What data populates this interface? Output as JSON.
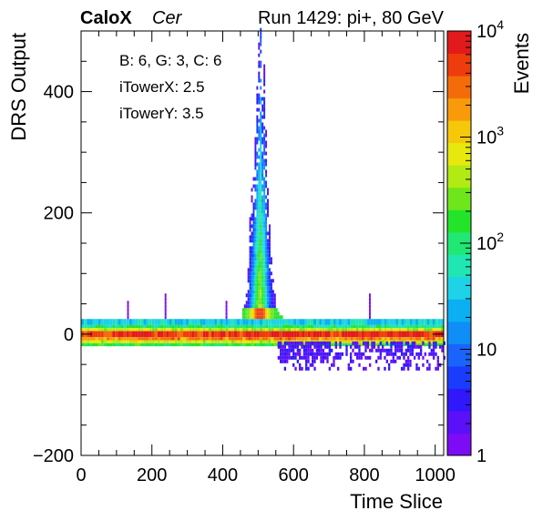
{
  "header": {
    "experiment": "CaloX",
    "channel": "Cer",
    "run_label": "Run 1429: pi+, 80 GeV"
  },
  "info_lines": [
    "B: 6, G: 3, C: 6",
    "iTowerX: 2.5",
    "iTowerY: 3.5"
  ],
  "chart_data": {
    "type": "heatmap",
    "xlabel": "Time Slice",
    "ylabel": "DRS Output",
    "xlim": [
      0,
      1024
    ],
    "ylim": [
      -200,
      500
    ],
    "xticks": [
      0,
      200,
      400,
      600,
      800,
      1000
    ],
    "yticks": [
      -200,
      0,
      200,
      400
    ],
    "z_label": "Events",
    "z_scale": "log",
    "zlim": [
      1,
      10000
    ],
    "z_ticks": [
      {
        "value": 1,
        "label": "1"
      },
      {
        "value": 10,
        "label": "10"
      },
      {
        "value": 100,
        "label": "10",
        "exp": "2"
      },
      {
        "value": 1000,
        "label": "10",
        "exp": "3"
      },
      {
        "value": 10000,
        "label": "10",
        "exp": "4"
      }
    ],
    "palette": [
      "#7b0cf5",
      "#5a10f8",
      "#3018fb",
      "#1a3cfd",
      "#1a64fb",
      "#0e8ef6",
      "#0ab0f2",
      "#1ed2e8",
      "#20e6b4",
      "#1fe874",
      "#24e42a",
      "#6ee61a",
      "#b2ea14",
      "#e6e80e",
      "#f6c80a",
      "#f89a0a",
      "#f46c0a",
      "#ee3c0c",
      "#e31a1c"
    ],
    "baseline_bands": [
      {
        "y": [
          15,
          25
        ],
        "level": 0.38
      },
      {
        "y": [
          10,
          15
        ],
        "level": 0.5
      },
      {
        "y": [
          5,
          10
        ],
        "level": 0.66
      },
      {
        "y": [
          -5,
          5
        ],
        "level": 0.97
      },
      {
        "y": [
          -10,
          -5
        ],
        "level": 0.86
      },
      {
        "y": [
          -15,
          -10
        ],
        "level": 0.7
      },
      {
        "y": [
          -20,
          -15
        ],
        "level": 0.55
      }
    ],
    "pulse": {
      "x_range": [
        455,
        580
      ],
      "peak_x": 505,
      "peak_y": 500,
      "undershoot_x": [
        555,
        1024
      ],
      "undershoot_y": [
        -60,
        -15
      ]
    },
    "spikes": [
      {
        "x": 132,
        "y_top": 50
      },
      {
        "x": 238,
        "y_top": 65
      },
      {
        "x": 410,
        "y_top": 50
      },
      {
        "x": 815,
        "y_top": 62
      }
    ]
  }
}
